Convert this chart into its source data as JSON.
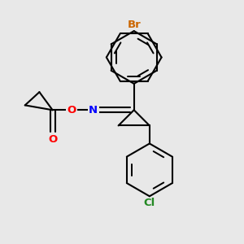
{
  "bg_color": "#e8e8e8",
  "bond_color": "#000000",
  "bond_width": 1.5,
  "atom_colors": {
    "Br": "#cc6600",
    "O": "#ff0000",
    "N": "#0000ff",
    "Cl": "#228822",
    "C": "#000000"
  },
  "font_size": 9.5,
  "figsize": [
    3.0,
    3.0
  ],
  "dpi": 100,
  "xlim": [
    0,
    10
  ],
  "ylim": [
    0,
    10
  ]
}
